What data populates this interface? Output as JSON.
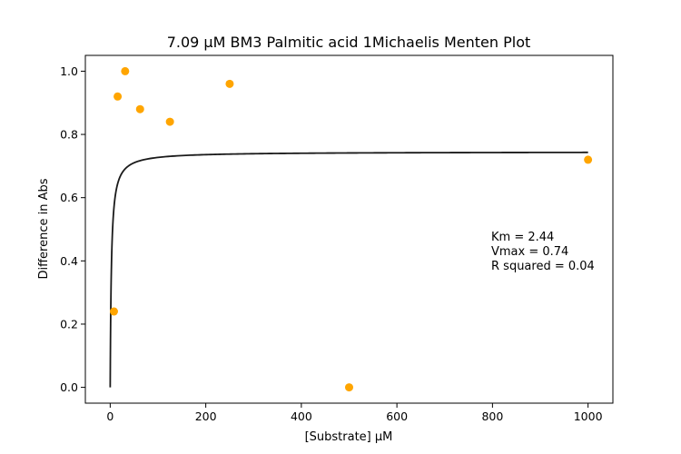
{
  "chart_data": {
    "type": "scatter",
    "title": "7.09 µM BM3 Palmitic acid 1Michaelis Menten Plot",
    "xlabel": "[Substrate] µM",
    "ylabel": "Difference in Abs",
    "xlim": [
      -52,
      1052
    ],
    "ylim": [
      -0.05,
      1.05
    ],
    "xticks": [
      0,
      200,
      400,
      600,
      800,
      1000
    ],
    "xtick_labels": [
      "0",
      "200",
      "400",
      "600",
      "800",
      "1000"
    ],
    "yticks": [
      0.0,
      0.2,
      0.4,
      0.6,
      0.8,
      1.0
    ],
    "ytick_labels": [
      "0.0",
      "0.2",
      "0.4",
      "0.6",
      "0.8",
      "1.0"
    ],
    "grid": false,
    "series": [
      {
        "kind": "points",
        "color": "#ffa500",
        "x": [
          7.8,
          15.6,
          31.25,
          62.5,
          125,
          250,
          500,
          1000
        ],
        "y": [
          0.24,
          0.92,
          1.0,
          0.88,
          0.84,
          0.96,
          0.0,
          0.72
        ]
      },
      {
        "kind": "fit-line",
        "color": "#1a1a1a",
        "model": "michaelis-menten",
        "Km": 2.44,
        "Vmax": 0.745,
        "x_range": [
          0,
          1000
        ]
      }
    ],
    "annotations": [
      "Km = 2.44",
      "Vmax = 0.74",
      "R squared = 0.04"
    ]
  }
}
